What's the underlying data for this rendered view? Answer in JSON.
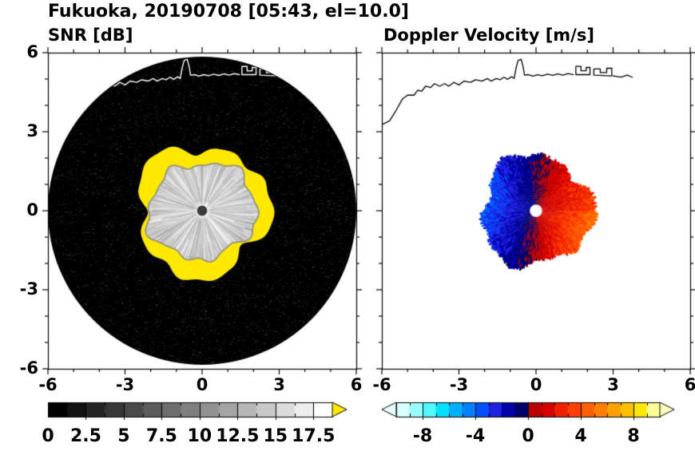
{
  "header": {
    "title": "Fukuoka, 20190708 [05:43, el=10.0]"
  },
  "chart_data": [
    {
      "type": "heatmap",
      "panel": "left",
      "title": "SNR [dB]",
      "xlim": [
        -6,
        6
      ],
      "ylim": [
        -6,
        6
      ],
      "xticks": [
        -6,
        -3,
        0,
        3,
        6
      ],
      "yticks": [
        6,
        3,
        0,
        -3,
        -6
      ],
      "grid": false,
      "scan_area": {
        "shape": "circle",
        "center": [
          0,
          0
        ],
        "radius": 6,
        "background": "#000000"
      },
      "echo": {
        "description": "radar echo centered on site: bright grayscale core with radial streak texture, surrounded by irregular high-SNR yellow ring, dark gray dot at radar location",
        "ring_shape": {
          "base": 2.55,
          "terms": [
            [
              3,
              0.22,
              0.8
            ],
            [
              5,
              0.16,
              2.2
            ],
            [
              8,
              0.1,
              4.1
            ],
            [
              13,
              0.06,
              1.3
            ]
          ]
        },
        "ring_color": "#ffe800",
        "inner_shape": {
          "base": 1.95,
          "terms": [
            [
              2,
              0.15,
              1.1
            ],
            [
              5,
              0.13,
              3.0
            ],
            [
              9,
              0.08,
              0.5
            ],
            [
              14,
              0.05,
              2.6
            ]
          ]
        },
        "inner_base_color": "#cfcfcf",
        "rim_color": "rgba(140,140,140,0.9)",
        "center_dot": {
          "radius": 0.2,
          "color": "#3c3c3c"
        }
      },
      "coastline_color": "#ffffff",
      "colorbar": {
        "min": 0,
        "max": 18.75,
        "n_segments": 15,
        "labels": [
          "0",
          "2.5",
          "5",
          "7.5",
          "10",
          "12.5",
          "15",
          "17.5"
        ],
        "label_values": [
          0,
          2.5,
          5,
          7.5,
          10,
          12.5,
          15,
          17.5
        ],
        "colors": [
          "#000000",
          "#121212",
          "#242424",
          "#373737",
          "#494949",
          "#5b5b5b",
          "#6d6d6d",
          "#7f7f7f",
          "#929292",
          "#a4a4a4",
          "#b6b6b6",
          "#c8c8c8",
          "#dbdbdb",
          "#ededed",
          "#ffffff"
        ],
        "extend_min": false,
        "extend_max": true,
        "extend_max_color": "#ffe800"
      }
    },
    {
      "type": "heatmap",
      "panel": "right",
      "title": "Doppler Velocity [m/s]",
      "xlim": [
        -6,
        6
      ],
      "ylim": [
        -6,
        6
      ],
      "xticks": [
        -6,
        -3,
        0,
        3,
        6
      ],
      "yticks": [
        6,
        3,
        0,
        -3,
        -6
      ],
      "grid": false,
      "background": "#ffffff",
      "echo": {
        "description": "Doppler velocity dipole: negative velocities (dark blue/navy) on the west half, positive velocities (red-orange-yellow) on the east half, white dot at radar location",
        "shape": {
          "base": 2.15,
          "terms": [
            [
              3,
              0.18,
              2.0
            ],
            [
              6,
              0.12,
              0.7
            ],
            [
              11,
              0.07,
              3.8
            ]
          ]
        },
        "velocity_model": {
          "v_inner": 0.8,
          "v_outer": 2.9,
          "pow": 0.9,
          "rotation": 0.12,
          "se_boost": 1.35,
          "noise": 1.8
        },
        "center_dot": {
          "radius": 0.24,
          "color": "#ffffff"
        }
      },
      "coastline_color": "#000000",
      "colorbar": {
        "min": -10,
        "max": 10,
        "n_segments": 20,
        "labels": [
          "-8",
          "-4",
          "0",
          "4",
          "8"
        ],
        "label_values": [
          -8,
          -4,
          0,
          4,
          8
        ],
        "colors": [
          "#d8ffff",
          "#98ffff",
          "#50f8ff",
          "#00e0ff",
          "#00b0ff",
          "#0080ff",
          "#0050ff",
          "#2020e0",
          "#0000a8",
          "#000068",
          "#b80000",
          "#d40000",
          "#ee2000",
          "#ff4000",
          "#ff6000",
          "#ff8000",
          "#ffa000",
          "#ffc000",
          "#ffe800",
          "#ffff98"
        ],
        "extend_min": true,
        "extend_min_color": "#e6ffff",
        "extend_max": true,
        "extend_max_color": "#ffffbb"
      }
    }
  ],
  "coastline": {
    "paths": [
      [
        [
          -6.0,
          3.35
        ],
        [
          -5.7,
          3.5
        ],
        [
          -5.45,
          3.9
        ],
        [
          -5.2,
          4.35
        ],
        [
          -5.0,
          4.5
        ],
        [
          -4.75,
          4.5
        ],
        [
          -4.6,
          4.7
        ],
        [
          -4.45,
          4.65
        ],
        [
          -4.3,
          4.85
        ],
        [
          -4.1,
          4.8
        ],
        [
          -3.95,
          4.95
        ],
        [
          -3.75,
          4.85
        ],
        [
          -3.55,
          4.95
        ],
        [
          -3.4,
          4.85
        ],
        [
          -3.2,
          5.0
        ],
        [
          -3.0,
          4.9
        ],
        [
          -2.8,
          5.05
        ],
        [
          -2.55,
          5.0
        ],
        [
          -2.35,
          5.1
        ],
        [
          -2.1,
          5.05
        ],
        [
          -1.9,
          5.15
        ],
        [
          -1.75,
          5.05
        ],
        [
          -1.55,
          5.15
        ],
        [
          -1.4,
          5.1
        ],
        [
          -1.25,
          5.2
        ],
        [
          -1.1,
          5.12
        ],
        [
          -0.95,
          5.22
        ],
        [
          -0.85,
          5.15
        ],
        [
          -0.78,
          5.55
        ],
        [
          -0.7,
          5.85
        ],
        [
          -0.58,
          5.9
        ],
        [
          -0.5,
          5.6
        ],
        [
          -0.45,
          5.28
        ],
        [
          -0.3,
          5.3
        ],
        [
          -0.12,
          5.24
        ],
        [
          0.05,
          5.3
        ],
        [
          0.25,
          5.26
        ],
        [
          0.45,
          5.32
        ],
        [
          0.65,
          5.27
        ],
        [
          0.85,
          5.33
        ],
        [
          1.05,
          5.28
        ],
        [
          1.25,
          5.34
        ],
        [
          1.45,
          5.3
        ]
      ],
      [
        [
          1.55,
          5.3
        ],
        [
          1.55,
          5.62
        ],
        [
          1.75,
          5.62
        ],
        [
          1.75,
          5.45
        ],
        [
          1.95,
          5.45
        ],
        [
          1.95,
          5.58
        ],
        [
          2.1,
          5.58
        ],
        [
          2.1,
          5.3
        ],
        [
          1.55,
          5.3
        ]
      ],
      [
        [
          2.25,
          5.28
        ],
        [
          2.25,
          5.52
        ],
        [
          2.5,
          5.52
        ],
        [
          2.5,
          5.38
        ],
        [
          2.75,
          5.38
        ],
        [
          2.75,
          5.55
        ],
        [
          2.95,
          5.55
        ],
        [
          2.95,
          5.25
        ],
        [
          2.25,
          5.28
        ]
      ],
      [
        [
          3.0,
          5.25
        ],
        [
          3.3,
          5.2
        ],
        [
          3.55,
          5.28
        ],
        [
          3.75,
          5.2
        ]
      ]
    ]
  }
}
